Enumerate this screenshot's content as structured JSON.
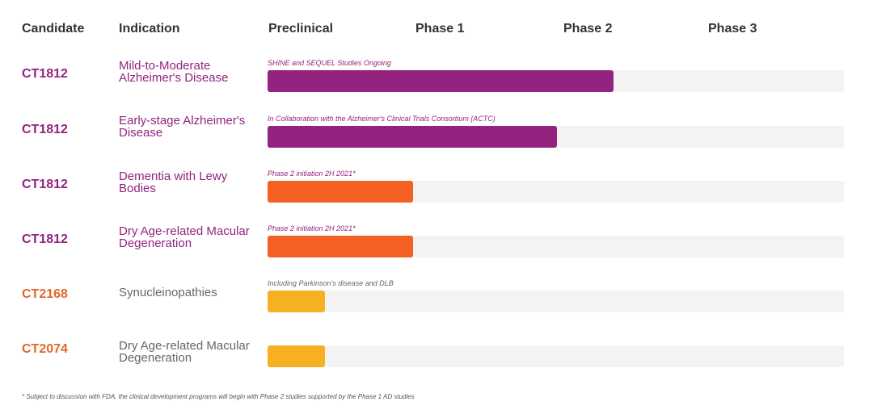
{
  "chart_data": {
    "type": "bar",
    "orientation": "horizontal",
    "headers": {
      "candidate": "Candidate",
      "indication": "Indication",
      "stages": [
        "Preclinical",
        "Phase 1",
        "Phase 2",
        "Phase 3"
      ]
    },
    "rows": [
      {
        "candidate": "CT1812",
        "indication": "Mild-to-Moderate Alzheimer's Disease",
        "note": "SHINE and SEQUEL Studies Ongoing",
        "progress": 0.6,
        "color": "#93237f",
        "candidate_color": "#93237f",
        "indication_color": "#93237f"
      },
      {
        "candidate": "CT1812",
        "indication": "Early-stage Alzheimer's Disease",
        "note": "In Collaboration with the Alzheimer's Clinical Trials Consortium (ACTC)",
        "progress": 0.502,
        "color": "#93237f",
        "candidate_color": "#93237f",
        "indication_color": "#93237f"
      },
      {
        "candidate": "CT1812",
        "indication": "Dementia with Lewy Bodies",
        "note": "Phase 2 initiation 2H 2021*",
        "progress": 0.252,
        "color": "#f26123",
        "candidate_color": "#93237f",
        "indication_color": "#93237f"
      },
      {
        "candidate": "CT1812",
        "indication": "Dry Age-related Macular Degeneration",
        "note": "Phase 2 initiation 2H 2021*",
        "progress": 0.252,
        "color": "#f26123",
        "candidate_color": "#93237f",
        "indication_color": "#93237f"
      },
      {
        "candidate": "CT2168",
        "indication": "Synucleinopathies",
        "note": "Including Parkinson's disease and DLB",
        "progress": 0.1,
        "color": "#f6b123",
        "candidate_color": "#e0682c",
        "indication_color": "#666666"
      },
      {
        "candidate": "CT2074",
        "indication": "Dry Age-related Macular Degeneration",
        "note": "",
        "progress": 0.1,
        "color": "#f6b123",
        "candidate_color": "#e0682c",
        "indication_color": "#666666"
      }
    ],
    "footnote": "* Subject to discussion with FDA, the clinical development programs will begin with Phase 2 studies supported by the Phase 1 AD studies"
  }
}
